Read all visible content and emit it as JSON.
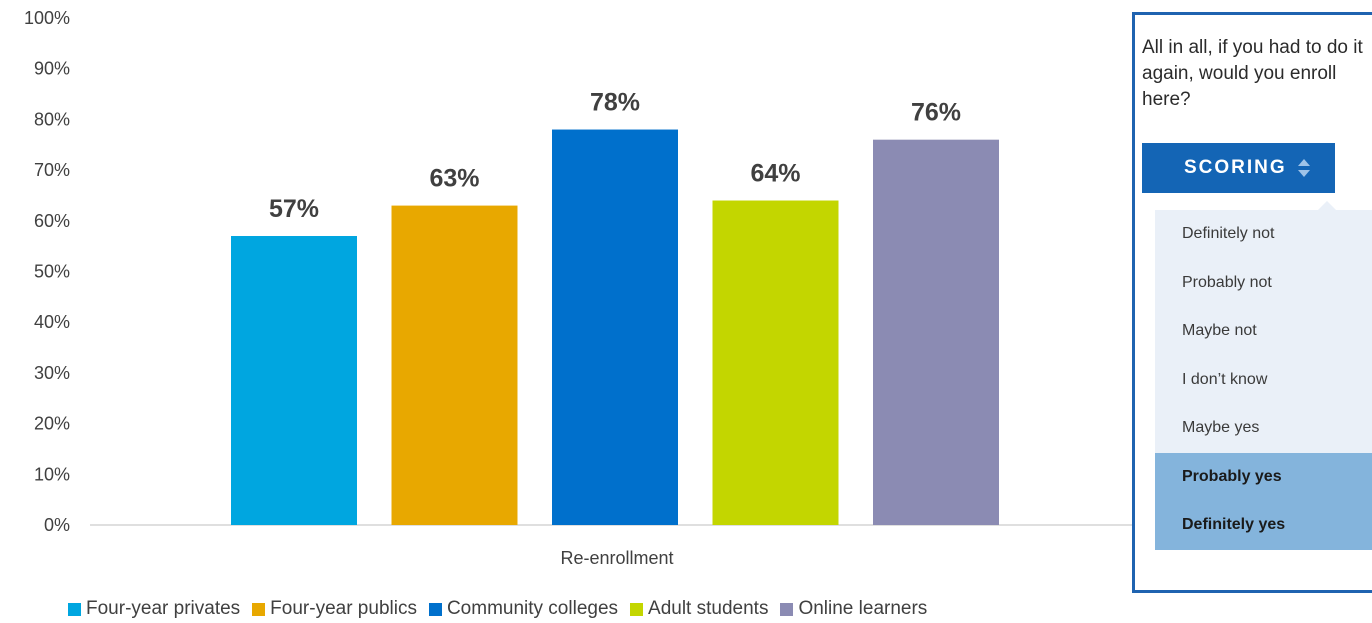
{
  "chart_data": {
    "type": "bar",
    "categories": [
      "Re-enrollment"
    ],
    "series": [
      {
        "name": "Four-year privates",
        "values": [
          57
        ],
        "color": "#00a6e0"
      },
      {
        "name": "Four-year publics",
        "values": [
          63
        ],
        "color": "#e8a800"
      },
      {
        "name": "Community colleges",
        "values": [
          78
        ],
        "color": "#0070cc"
      },
      {
        "name": "Adult students",
        "values": [
          64
        ],
        "color": "#c3d600"
      },
      {
        "name": "Online learners",
        "values": [
          76
        ],
        "color": "#8b8bb3"
      }
    ],
    "data_labels": [
      "57%",
      "63%",
      "78%",
      "64%",
      "76%"
    ],
    "y_ticks": [
      "0%",
      "10%",
      "20%",
      "30%",
      "40%",
      "50%",
      "60%",
      "70%",
      "80%",
      "90%",
      "100%"
    ],
    "ylim": [
      0,
      100
    ],
    "grid": false,
    "legend_position": "bottom",
    "title": "",
    "xlabel": "",
    "ylabel": ""
  },
  "legend": {
    "items": [
      {
        "label": "Four-year privates",
        "color": "#00a6e0"
      },
      {
        "label": "Four-year publics",
        "color": "#e8a800"
      },
      {
        "label": "Community colleges",
        "color": "#0070cc"
      },
      {
        "label": "Adult students",
        "color": "#c3d600"
      },
      {
        "label": "Online learners",
        "color": "#8b8bb3"
      }
    ]
  },
  "panel": {
    "question": "All in all, if you had to do it again, would you enroll here?",
    "scoring_label": "SCORING",
    "sort_icon": "sort-arrows-icon",
    "accent_color": "#1465b5",
    "options": [
      {
        "label": "Definitely not",
        "selected": false
      },
      {
        "label": "Probably not",
        "selected": false
      },
      {
        "label": "Maybe not",
        "selected": false
      },
      {
        "label": "I don’t know",
        "selected": false
      },
      {
        "label": "Maybe yes",
        "selected": false
      },
      {
        "label": "Probably yes",
        "selected": true
      },
      {
        "label": "Definitely yes",
        "selected": true
      }
    ]
  }
}
